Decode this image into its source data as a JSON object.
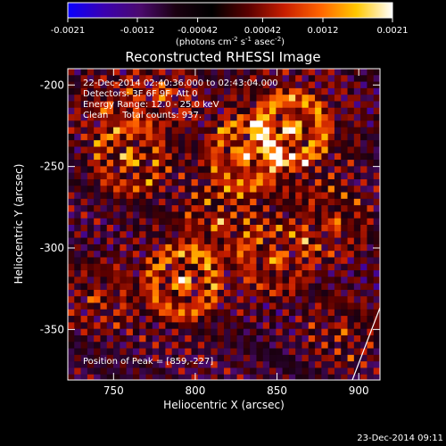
{
  "chart_data": {
    "type": "heatmap",
    "title": "Reconstructed RHESSI Image",
    "xlabel": "Heliocentric X (arcsec)",
    "ylabel": "Heliocentric Y (arcsec)",
    "xlim": [
      722,
      913
    ],
    "ylim": [
      -381,
      -190
    ],
    "xticks": [
      750,
      800,
      850,
      900
    ],
    "yticks": [
      -200,
      -250,
      -300,
      -350
    ],
    "colorbar": {
      "min": -0.0021,
      "max": 0.0021,
      "ticks": [
        "-0.0021",
        "-0.0012",
        "-0.00042",
        "0.00042",
        "0.0012",
        "0.0021"
      ],
      "label_prefix": "(photons cm",
      "label_exp1": "-2",
      "label_mid1": " s",
      "label_exp2": "-1",
      "label_mid2": " asec",
      "label_exp3": "-2",
      "label_suffix": ")",
      "colors": [
        "#0a00ff",
        "#3a00b0",
        "#4b0a6e",
        "#1a0010",
        "#000000",
        "#5a0000",
        "#c81e00",
        "#ff6400",
        "#ffc800",
        "#ffffff"
      ]
    },
    "annotations": [
      "22-Dec-2014 02:40:36.000 to 02:43:04.000",
      "Detectors: 3F 6F 9F, Att 0",
      "Energy Range: 12.0 - 25.0 keV",
      "Clean     Total counts: 937."
    ],
    "peak_label": "Position of Peak = [859,-227]",
    "peak_position": [
      859,
      -227
    ],
    "grid": false
  },
  "footer": {
    "timestamp": "23-Dec-2014 09:11"
  }
}
